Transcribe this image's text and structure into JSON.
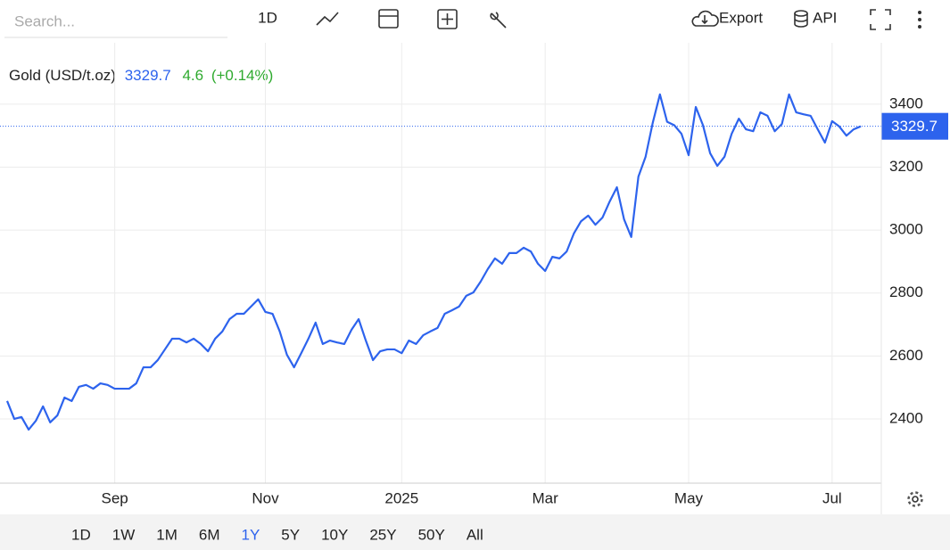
{
  "toolbar": {
    "search_placeholder": "Search...",
    "interval": "1D",
    "export": "Export",
    "api": "API"
  },
  "quote": {
    "change": 4.6,
    "change_pct": "(+0.14%)"
  },
  "chart_data": {
    "type": "line",
    "categories": [
      null,
      null,
      null,
      null,
      null,
      null,
      null,
      null,
      null,
      null,
      null,
      null,
      null,
      null,
      null,
      "Sep",
      null,
      null,
      null,
      null,
      null,
      null,
      null,
      null,
      null,
      null,
      null,
      null,
      null,
      null,
      null,
      null,
      null,
      null,
      null,
      null,
      "Nov",
      null,
      null,
      null,
      null,
      null,
      null,
      null,
      null,
      null,
      null,
      null,
      null,
      null,
      null,
      null,
      null,
      null,
      null,
      "2025",
      null,
      null,
      null,
      null,
      null,
      null,
      null,
      null,
      null,
      null,
      null,
      null,
      null,
      null,
      null,
      null,
      null,
      null,
      null,
      "Mar",
      null,
      null,
      null,
      null,
      null,
      null,
      null,
      null,
      null,
      null,
      null,
      null,
      null,
      null,
      null,
      null,
      null,
      null,
      null,
      "May",
      null,
      null,
      null,
      null,
      null,
      null,
      null,
      null,
      null,
      null,
      null,
      null,
      null,
      null,
      null,
      null,
      null,
      null,
      null,
      "Jul",
      null,
      null,
      null,
      null
    ],
    "series": [
      {
        "name": "Gold (USD/t.oz)",
        "color": "#2d63ed",
        "values": [
          2457,
          2400,
          2406,
          2366,
          2394,
          2440,
          2389,
          2411,
          2468,
          2457,
          2502,
          2508,
          2496,
          2513,
          2508,
          2496,
          2496,
          2496,
          2513,
          2564,
          2564,
          2587,
          2621,
          2655,
          2655,
          2643,
          2655,
          2638,
          2615,
          2655,
          2678,
          2717,
          2734,
          2734,
          2757,
          2780,
          2740,
          2734,
          2678,
          2604,
          2564,
          2609,
          2655,
          2706,
          2638,
          2649,
          2643,
          2638,
          2683,
          2717,
          2649,
          2587,
          2615,
          2621,
          2621,
          2609,
          2649,
          2638,
          2666,
          2678,
          2689,
          2734,
          2745,
          2757,
          2791,
          2802,
          2836,
          2876,
          2910,
          2893,
          2927,
          2927,
          2944,
          2932,
          2893,
          2870,
          2915,
          2910,
          2932,
          2989,
          3028,
          3046,
          3017,
          3040,
          3091,
          3136,
          3034,
          2978,
          3170,
          3233,
          3341,
          3431,
          3344,
          3333,
          3306,
          3238,
          3391,
          3333,
          3244,
          3204,
          3233,
          3306,
          3354,
          3320,
          3314,
          3374,
          3363,
          3314,
          3337,
          3431,
          3374,
          3368,
          3363,
          3320,
          3278,
          3346,
          3329,
          3300,
          3320,
          3329.7
        ]
      }
    ],
    "ylim": [
      2196,
      3595
    ],
    "yticks": [
      2400,
      2600,
      2800,
      3000,
      3200,
      3400
    ],
    "grid": true
  },
  "ranges": [
    "1D",
    "1W",
    "1M",
    "6M",
    "1Y",
    "5Y",
    "10Y",
    "25Y",
    "50Y",
    "All"
  ]
}
